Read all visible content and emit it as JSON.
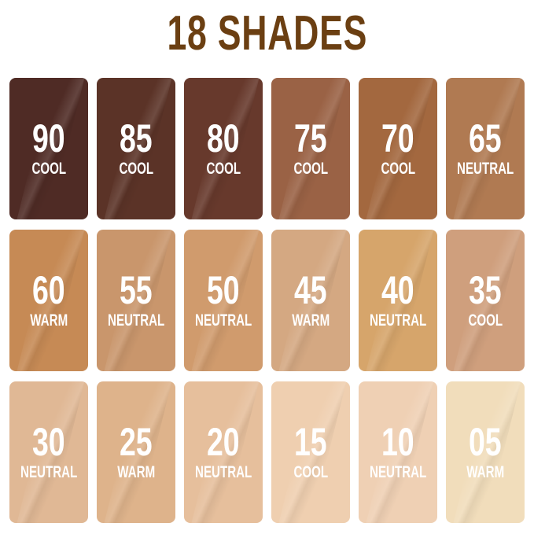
{
  "title": "18 SHADES",
  "title_color": "#6b3f12",
  "shades": [
    {
      "number": "90",
      "undertone": "COOL",
      "color": "#4f2b25"
    },
    {
      "number": "85",
      "undertone": "COOL",
      "color": "#5b3327"
    },
    {
      "number": "80",
      "undertone": "COOL",
      "color": "#67392c"
    },
    {
      "number": "75",
      "undertone": "COOL",
      "color": "#9a6245"
    },
    {
      "number": "70",
      "undertone": "COOL",
      "color": "#a3683f"
    },
    {
      "number": "65",
      "undertone": "NEUTRAL",
      "color": "#b07a52"
    },
    {
      "number": "60",
      "undertone": "WARM",
      "color": "#c68a55"
    },
    {
      "number": "55",
      "undertone": "NEUTRAL",
      "color": "#c9966c"
    },
    {
      "number": "50",
      "undertone": "NEUTRAL",
      "color": "#d09b6d"
    },
    {
      "number": "45",
      "undertone": "WARM",
      "color": "#d4a882"
    },
    {
      "number": "40",
      "undertone": "NEUTRAL",
      "color": "#d6a56b"
    },
    {
      "number": "35",
      "undertone": "COOL",
      "color": "#cf9f7d"
    },
    {
      "number": "30",
      "undertone": "NEUTRAL",
      "color": "#e0b895"
    },
    {
      "number": "25",
      "undertone": "WARM",
      "color": "#deb38b"
    },
    {
      "number": "20",
      "undertone": "NEUTRAL",
      "color": "#e6bf9c"
    },
    {
      "number": "15",
      "undertone": "COOL",
      "color": "#efcfb0"
    },
    {
      "number": "10",
      "undertone": "NEUTRAL",
      "color": "#efd0b4"
    },
    {
      "number": "05",
      "undertone": "WARM",
      "color": "#f1ddbb"
    }
  ]
}
